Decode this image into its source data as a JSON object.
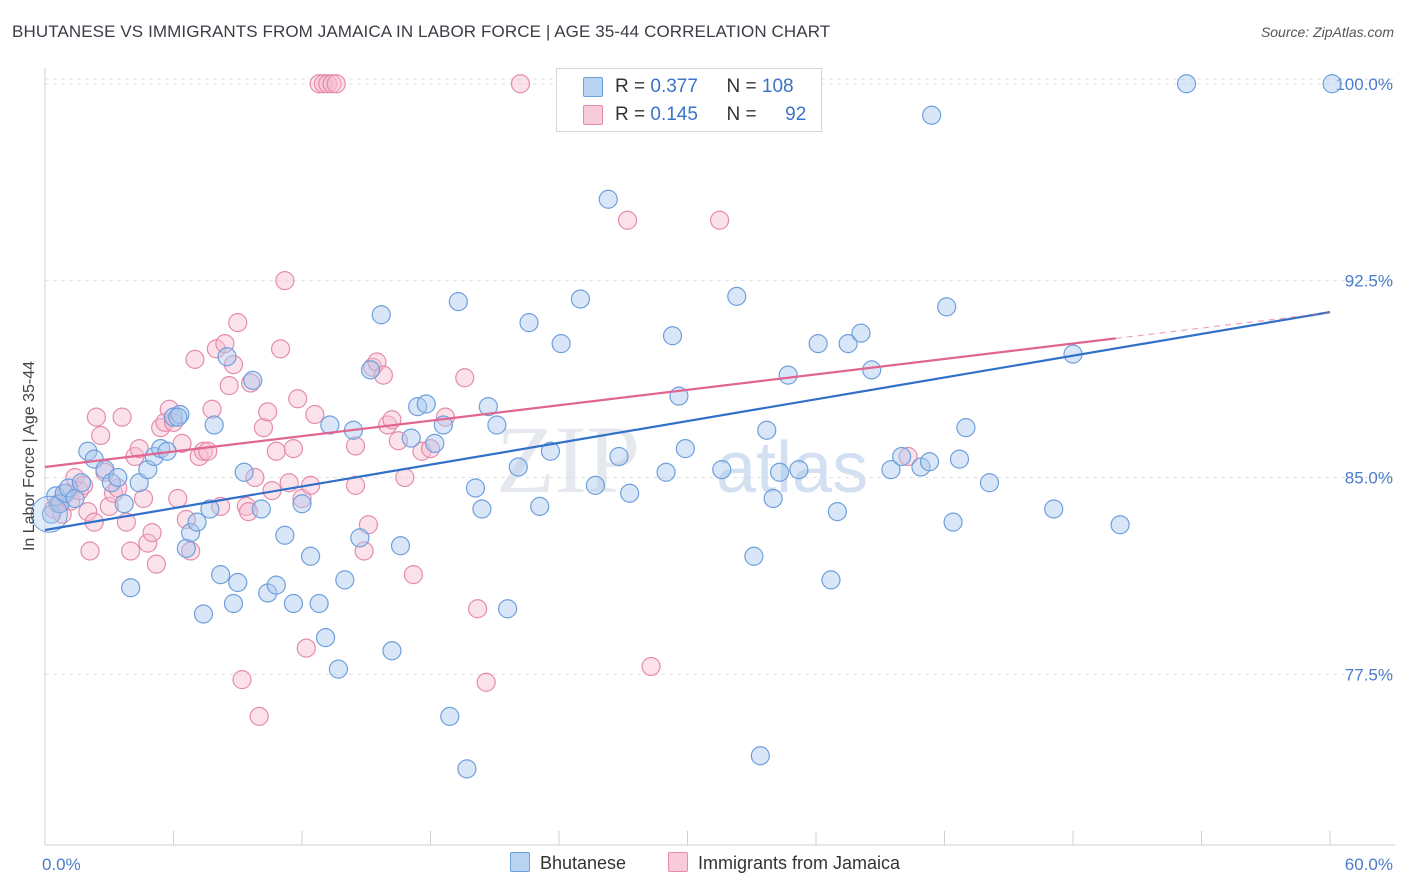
{
  "header": {
    "title": "BHUTANESE VS IMMIGRANTS FROM JAMAICA IN LABOR FORCE | AGE 35-44 CORRELATION CHART",
    "source": "Source: ZipAtlas.com"
  },
  "watermark": {
    "zip": "ZIP",
    "atlas": "atlas"
  },
  "legend": {
    "rows": [
      {
        "r_label": "R =",
        "r_value": "0.377",
        "n_label": "N =",
        "n_value": "108"
      },
      {
        "r_label": "R =",
        "r_value": "0.145",
        "n_label": "N =",
        "n_value": "92"
      }
    ]
  },
  "bottom_legend": {
    "series1": "Bhutanese",
    "series2": "Immigrants from Jamaica"
  },
  "colors": {
    "blue_fill": "#a9c8ee",
    "blue_stroke": "#6d9fdc",
    "blue_line": "#3170c8",
    "pink_fill": "#f6bdd0",
    "pink_stroke": "#e58bab",
    "pink_line": "#e0668f",
    "tick_text": "#4a7cc9",
    "grid": "#e2e2e2"
  },
  "chart_data": {
    "type": "scatter",
    "title": "BHUTANESE VS IMMIGRANTS FROM JAMAICA IN LABOR FORCE | AGE 35-44 CORRELATION CHART",
    "xlabel": "",
    "ylabel": "In Labor Force | Age 35-44",
    "xlim": [
      0,
      60
    ],
    "ylim": [
      71.0,
      100.6
    ],
    "x_tick_labels": [
      "0.0%",
      "60.0%"
    ],
    "y_ticks": [
      77.5,
      85.0,
      92.5,
      100.0
    ],
    "y_tick_labels": [
      "77.5%",
      "85.0%",
      "92.5%",
      "100.0%"
    ],
    "grid": true,
    "legend_position": "top-center",
    "series": [
      {
        "name": "Bhutanese",
        "r": 0.377,
        "n": 108,
        "trend": {
          "x": [
            0,
            60
          ],
          "y": [
            83.0,
            91.3
          ]
        },
        "points": [
          [
            0.3,
            83.6
          ],
          [
            0.5,
            84.3
          ],
          [
            0.7,
            84.0
          ],
          [
            0.9,
            84.4
          ],
          [
            1.1,
            84.6
          ],
          [
            1.4,
            84.2
          ],
          [
            1.7,
            84.8
          ],
          [
            2.0,
            86.0
          ],
          [
            2.3,
            85.7
          ],
          [
            2.8,
            85.3
          ],
          [
            3.1,
            84.8
          ],
          [
            3.4,
            85.0
          ],
          [
            3.7,
            84.0
          ],
          [
            4.0,
            80.8
          ],
          [
            4.4,
            84.8
          ],
          [
            4.8,
            85.3
          ],
          [
            5.1,
            85.8
          ],
          [
            5.4,
            86.1
          ],
          [
            5.7,
            86.0
          ],
          [
            6.0,
            87.3
          ],
          [
            6.3,
            87.4
          ],
          [
            6.6,
            82.3
          ],
          [
            6.8,
            82.9
          ],
          [
            7.1,
            83.3
          ],
          [
            7.4,
            79.8
          ],
          [
            7.7,
            83.8
          ],
          [
            7.9,
            87.0
          ],
          [
            8.2,
            81.3
          ],
          [
            8.5,
            89.6
          ],
          [
            8.8,
            80.2
          ],
          [
            9.0,
            81.0
          ],
          [
            9.3,
            85.2
          ],
          [
            9.7,
            88.7
          ],
          [
            10.1,
            83.8
          ],
          [
            10.4,
            80.6
          ],
          [
            10.8,
            80.9
          ],
          [
            11.2,
            82.8
          ],
          [
            11.6,
            80.2
          ],
          [
            12.0,
            84.0
          ],
          [
            12.4,
            82.0
          ],
          [
            12.8,
            80.2
          ],
          [
            13.1,
            78.9
          ],
          [
            13.3,
            87.0
          ],
          [
            13.7,
            77.7
          ],
          [
            14.0,
            81.1
          ],
          [
            14.4,
            86.8
          ],
          [
            14.7,
            82.7
          ],
          [
            15.2,
            89.1
          ],
          [
            15.7,
            91.2
          ],
          [
            16.2,
            78.4
          ],
          [
            16.6,
            82.4
          ],
          [
            17.1,
            86.5
          ],
          [
            17.4,
            87.7
          ],
          [
            17.8,
            87.8
          ],
          [
            18.2,
            86.3
          ],
          [
            18.6,
            87.0
          ],
          [
            18.9,
            75.9
          ],
          [
            19.3,
            91.7
          ],
          [
            19.7,
            73.9
          ],
          [
            20.1,
            84.6
          ],
          [
            20.4,
            83.8
          ],
          [
            20.7,
            87.7
          ],
          [
            21.1,
            87.0
          ],
          [
            21.6,
            80.0
          ],
          [
            22.1,
            85.4
          ],
          [
            22.6,
            90.9
          ],
          [
            23.1,
            83.9
          ],
          [
            23.6,
            86.0
          ],
          [
            24.1,
            90.1
          ],
          [
            25.0,
            91.8
          ],
          [
            25.7,
            84.7
          ],
          [
            26.3,
            95.6
          ],
          [
            26.8,
            85.8
          ],
          [
            27.3,
            84.4
          ],
          [
            28.0,
            100.0
          ],
          [
            29.0,
            85.2
          ],
          [
            29.3,
            90.4
          ],
          [
            29.6,
            88.1
          ],
          [
            29.9,
            86.1
          ],
          [
            31.6,
            85.3
          ],
          [
            32.3,
            91.9
          ],
          [
            33.1,
            82.0
          ],
          [
            33.4,
            74.4
          ],
          [
            33.7,
            86.8
          ],
          [
            34.0,
            84.2
          ],
          [
            34.3,
            85.2
          ],
          [
            34.7,
            88.9
          ],
          [
            35.2,
            85.3
          ],
          [
            36.1,
            90.1
          ],
          [
            36.7,
            81.1
          ],
          [
            37.0,
            83.7
          ],
          [
            37.5,
            90.1
          ],
          [
            38.1,
            90.5
          ],
          [
            38.6,
            89.1
          ],
          [
            39.5,
            85.3
          ],
          [
            40.0,
            85.8
          ],
          [
            40.9,
            85.4
          ],
          [
            41.3,
            85.6
          ],
          [
            41.4,
            98.8
          ],
          [
            42.1,
            91.5
          ],
          [
            42.4,
            83.3
          ],
          [
            42.7,
            85.7
          ],
          [
            43.0,
            86.9
          ],
          [
            44.1,
            84.8
          ],
          [
            47.1,
            83.8
          ],
          [
            48.0,
            89.7
          ],
          [
            50.2,
            83.2
          ],
          [
            53.3,
            100.0
          ],
          [
            60.1,
            100.0
          ],
          [
            6.2,
            87.3
          ]
        ]
      },
      {
        "name": "Immigrants from Jamaica",
        "r": 0.145,
        "n": 92,
        "trend": {
          "x": [
            0,
            50
          ],
          "y": [
            85.4,
            90.3
          ]
        },
        "points": [
          [
            0.4,
            83.8
          ],
          [
            0.6,
            84.0
          ],
          [
            0.8,
            83.6
          ],
          [
            1.0,
            84.4
          ],
          [
            1.2,
            84.1
          ],
          [
            1.4,
            85.0
          ],
          [
            1.6,
            84.5
          ],
          [
            1.8,
            84.7
          ],
          [
            2.0,
            83.7
          ],
          [
            2.1,
            82.2
          ],
          [
            2.3,
            83.3
          ],
          [
            2.4,
            87.3
          ],
          [
            2.6,
            86.6
          ],
          [
            2.8,
            85.2
          ],
          [
            3.0,
            83.9
          ],
          [
            3.2,
            84.4
          ],
          [
            3.4,
            84.6
          ],
          [
            3.6,
            87.3
          ],
          [
            3.8,
            83.3
          ],
          [
            4.0,
            82.2
          ],
          [
            4.2,
            85.8
          ],
          [
            4.4,
            86.1
          ],
          [
            4.6,
            84.2
          ],
          [
            4.8,
            82.5
          ],
          [
            5.0,
            82.9
          ],
          [
            5.2,
            81.7
          ],
          [
            5.4,
            86.9
          ],
          [
            5.6,
            87.1
          ],
          [
            5.8,
            87.6
          ],
          [
            6.0,
            87.1
          ],
          [
            6.2,
            84.2
          ],
          [
            6.4,
            86.3
          ],
          [
            6.6,
            83.4
          ],
          [
            6.8,
            82.2
          ],
          [
            7.0,
            89.5
          ],
          [
            7.2,
            85.8
          ],
          [
            7.4,
            86.0
          ],
          [
            7.6,
            86.0
          ],
          [
            7.8,
            87.6
          ],
          [
            8.0,
            89.9
          ],
          [
            8.2,
            83.9
          ],
          [
            8.4,
            90.1
          ],
          [
            8.6,
            88.5
          ],
          [
            8.8,
            89.3
          ],
          [
            9.0,
            90.9
          ],
          [
            9.2,
            77.3
          ],
          [
            9.4,
            83.9
          ],
          [
            9.6,
            88.6
          ],
          [
            9.8,
            85.0
          ],
          [
            10.0,
            75.9
          ],
          [
            10.2,
            86.9
          ],
          [
            10.4,
            87.5
          ],
          [
            10.6,
            84.5
          ],
          [
            10.8,
            86.0
          ],
          [
            11.0,
            89.9
          ],
          [
            11.2,
            92.5
          ],
          [
            11.4,
            84.8
          ],
          [
            11.6,
            86.1
          ],
          [
            11.8,
            88.0
          ],
          [
            12.0,
            84.2
          ],
          [
            12.2,
            78.5
          ],
          [
            12.4,
            84.7
          ],
          [
            12.6,
            87.4
          ],
          [
            12.8,
            100.0
          ],
          [
            13.0,
            100.0
          ],
          [
            13.2,
            100.0
          ],
          [
            13.4,
            100.0
          ],
          [
            13.6,
            100.0
          ],
          [
            14.5,
            86.2
          ],
          [
            14.9,
            82.2
          ],
          [
            14.5,
            84.7
          ],
          [
            15.1,
            83.2
          ],
          [
            15.3,
            89.2
          ],
          [
            15.5,
            89.4
          ],
          [
            15.8,
            88.9
          ],
          [
            16.0,
            87.0
          ],
          [
            16.2,
            87.2
          ],
          [
            16.5,
            86.4
          ],
          [
            16.8,
            85.0
          ],
          [
            17.2,
            81.3
          ],
          [
            17.6,
            86.0
          ],
          [
            18.0,
            86.1
          ],
          [
            18.7,
            87.3
          ],
          [
            19.6,
            88.8
          ],
          [
            20.2,
            80.0
          ],
          [
            20.6,
            77.2
          ],
          [
            22.2,
            100.0
          ],
          [
            27.2,
            94.8
          ],
          [
            28.3,
            77.8
          ],
          [
            31.5,
            94.8
          ],
          [
            40.3,
            85.8
          ],
          [
            9.5,
            83.7
          ]
        ]
      }
    ]
  }
}
